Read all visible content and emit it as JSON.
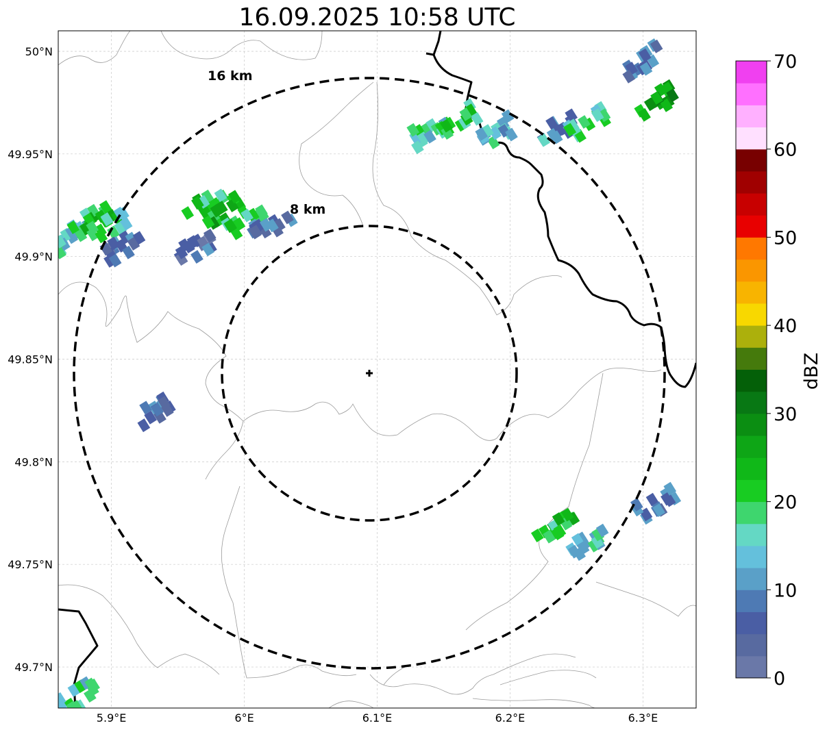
{
  "title": "16.09.2025 10:58 UTC",
  "map": {
    "lon_range": [
      5.86,
      6.34
    ],
    "lat_range": [
      49.68,
      50.01
    ],
    "lon_ticks": [
      {
        "value": 5.9,
        "label": "5.9°E"
      },
      {
        "value": 6.0,
        "label": "6°E"
      },
      {
        "value": 6.1,
        "label": "6.1°E"
      },
      {
        "value": 6.2,
        "label": "6.2°E"
      },
      {
        "value": 6.3,
        "label": "6.3°E"
      }
    ],
    "lat_ticks": [
      {
        "value": 50.0,
        "label": "50°N"
      },
      {
        "value": 49.95,
        "label": "49.95°N"
      },
      {
        "value": 49.9,
        "label": "49.9°N"
      },
      {
        "value": 49.85,
        "label": "49.85°N"
      },
      {
        "value": 49.8,
        "label": "49.8°N"
      },
      {
        "value": 49.75,
        "label": "49.75°N"
      },
      {
        "value": 49.7,
        "label": "49.7°N"
      }
    ],
    "gridlines": true,
    "radar_site": {
      "lon": 6.095,
      "lat": 49.843,
      "marker": "plus"
    },
    "range_rings": [
      {
        "radius_km": 8,
        "label": "8 km"
      },
      {
        "radius_km": 16,
        "label": "16 km"
      }
    ]
  },
  "colorbar": {
    "label": "dBZ",
    "vmin": 0,
    "vmax": 70,
    "ticks": [
      0,
      10,
      20,
      30,
      40,
      50,
      60,
      70
    ],
    "colors": [
      "#6a78a8",
      "#586aa0",
      "#4a5ea4",
      "#4e7ab4",
      "#5aa0c8",
      "#64c0dc",
      "#64d8c4",
      "#3ed66e",
      "#18cc22",
      "#10b818",
      "#0ea616",
      "#0b8e12",
      "#087814",
      "#046008",
      "#457a0c",
      "#acb00c",
      "#f8d800",
      "#f8b400",
      "#fa9600",
      "#ff7800",
      "#e80000",
      "#c80000",
      "#a00000",
      "#780000",
      "#ffe0ff",
      "#ffb0ff",
      "#ff70ff",
      "#f040f0"
    ]
  },
  "echo_cells": [
    {
      "lon": 5.87,
      "lat": 49.91,
      "value": 14
    },
    {
      "lon": 5.885,
      "lat": 49.918,
      "value": 22
    },
    {
      "lon": 5.9,
      "lat": 49.915,
      "value": 18
    },
    {
      "lon": 5.91,
      "lat": 49.905,
      "value": 6
    },
    {
      "lon": 5.97,
      "lat": 49.925,
      "value": 22
    },
    {
      "lon": 5.985,
      "lat": 49.922,
      "value": 24
    },
    {
      "lon": 6.0,
      "lat": 49.918,
      "value": 20
    },
    {
      "lon": 5.965,
      "lat": 49.905,
      "value": 6
    },
    {
      "lon": 6.02,
      "lat": 49.915,
      "value": 8
    },
    {
      "lon": 5.935,
      "lat": 49.825,
      "value": 8
    },
    {
      "lon": 6.14,
      "lat": 49.962,
      "value": 16
    },
    {
      "lon": 6.16,
      "lat": 49.965,
      "value": 20
    },
    {
      "lon": 6.19,
      "lat": 49.96,
      "value": 14
    },
    {
      "lon": 6.235,
      "lat": 49.962,
      "value": 10
    },
    {
      "lon": 6.26,
      "lat": 49.965,
      "value": 18
    },
    {
      "lon": 6.31,
      "lat": 49.975,
      "value": 26
    },
    {
      "lon": 6.3,
      "lat": 49.995,
      "value": 8
    },
    {
      "lon": 6.235,
      "lat": 49.767,
      "value": 22
    },
    {
      "lon": 6.26,
      "lat": 49.762,
      "value": 14
    },
    {
      "lon": 6.31,
      "lat": 49.78,
      "value": 8
    },
    {
      "lon": 5.875,
      "lat": 49.685,
      "value": 16
    }
  ]
}
